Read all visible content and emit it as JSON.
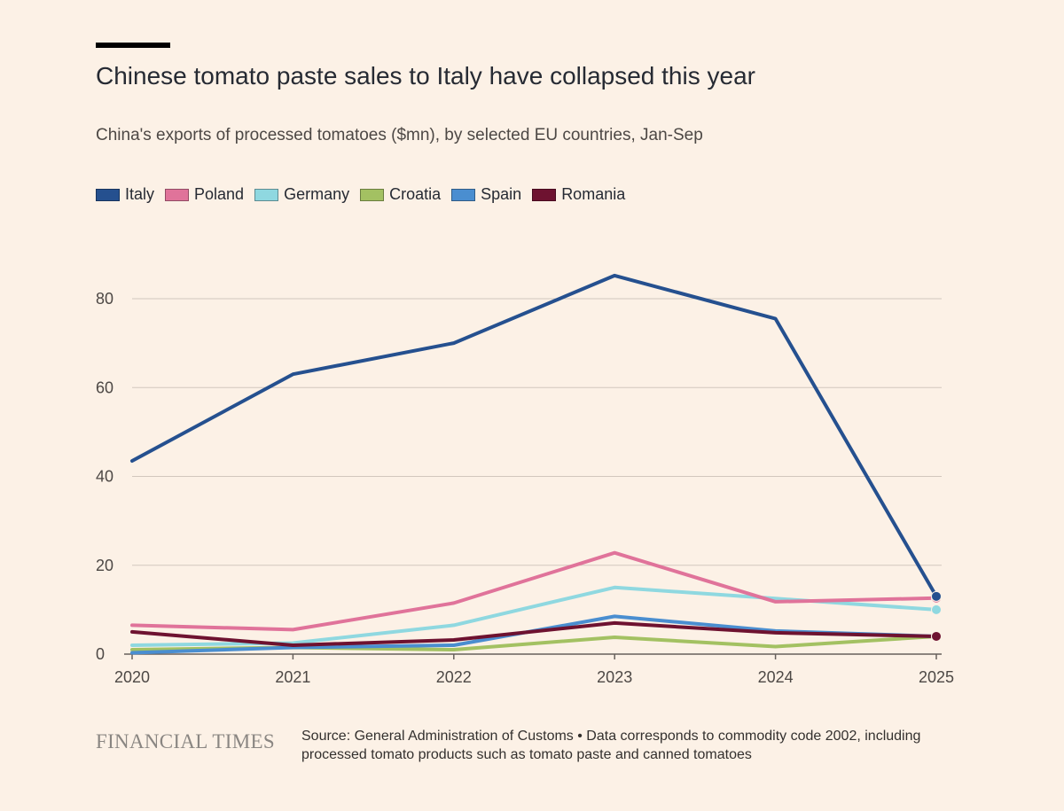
{
  "chart_data": {
    "type": "line",
    "title": "Chinese tomato paste sales to Italy have collapsed this year",
    "subtitle": "China's exports of processed tomatoes ($mn), by selected EU countries, Jan-Sep",
    "xlabel": "",
    "ylabel": "",
    "x": [
      "2020",
      "2021",
      "2022",
      "2023",
      "2024",
      "2025"
    ],
    "ylim": [
      0,
      90
    ],
    "yticks": [
      "0",
      "20",
      "40",
      "60",
      "80"
    ],
    "grid": true,
    "legend_position": "top-left",
    "series": [
      {
        "name": "Italy",
        "color": "#25508f",
        "values": [
          43.5,
          63,
          70,
          85.2,
          75.5,
          13
        ],
        "end_marker": true
      },
      {
        "name": "Poland",
        "color": "#e0739a",
        "values": [
          6.5,
          5.5,
          11.5,
          22.8,
          11.8,
          12.6
        ],
        "end_marker": true
      },
      {
        "name": "Germany",
        "color": "#8fd8e0",
        "values": [
          2,
          2.5,
          6.5,
          15,
          12.5,
          10
        ],
        "end_marker": true
      },
      {
        "name": "Croatia",
        "color": "#a3c162",
        "values": [
          1,
          1.5,
          1,
          3.8,
          1.7,
          4
        ],
        "end_marker": true
      },
      {
        "name": "Spain",
        "color": "#4a8ed0",
        "values": [
          0.3,
          1.5,
          2,
          8.5,
          5.2,
          4
        ],
        "end_marker": true
      },
      {
        "name": "Romania",
        "color": "#6e1230",
        "values": [
          5,
          2,
          3.2,
          7,
          4.8,
          4
        ],
        "end_marker": true
      }
    ]
  },
  "footer": {
    "logo": "FINANCIAL TIMES",
    "source": "Source: General Administration of Customs • Data corresponds to commodity code 2002, including processed tomato products such as tomato paste and canned tomatoes"
  }
}
